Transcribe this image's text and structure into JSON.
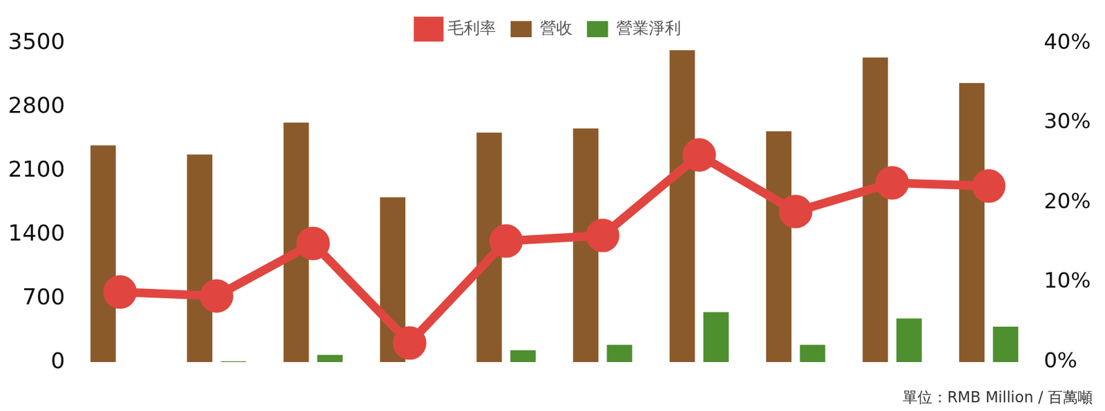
{
  "chart_data": {
    "type": "bar",
    "subtitle": "單位：RMB Million / 百萬噸",
    "categories": [
      null,
      null,
      null,
      null,
      null,
      null,
      null,
      null,
      null,
      null
    ],
    "series": [
      {
        "name": "營收",
        "type": "bar",
        "color": "#8b5a2b",
        "values": [
          2380,
          2280,
          2630,
          1810,
          2520,
          2565,
          3425,
          2535,
          3345,
          3065
        ]
      },
      {
        "name": "營業淨利",
        "type": "bar",
        "color": "#4e8f2f",
        "values": [
          null,
          10,
          80,
          null,
          130,
          190,
          550,
          190,
          480,
          390
        ]
      },
      {
        "name": "毛利率",
        "type": "line",
        "color": "#e0463f",
        "marker": "circle",
        "axis": "y2",
        "values": [
          8.8,
          8.3,
          14.9,
          2.4,
          15.2,
          15.9,
          26.0,
          18.9,
          22.5,
          22.1
        ]
      }
    ],
    "ylim": [
      0,
      3500
    ],
    "yticks": [
      0,
      700,
      1400,
      2100,
      2800,
      3500
    ],
    "y2lim": [
      0,
      40
    ],
    "y2ticks": [
      {
        "value": 0,
        "label": "0%"
      },
      {
        "value": 10,
        "label": "10%"
      },
      {
        "value": 20,
        "label": "20%"
      },
      {
        "value": 30,
        "label": "30%"
      },
      {
        "value": 40,
        "label": "40%"
      }
    ],
    "grid": false,
    "legend": "top"
  }
}
